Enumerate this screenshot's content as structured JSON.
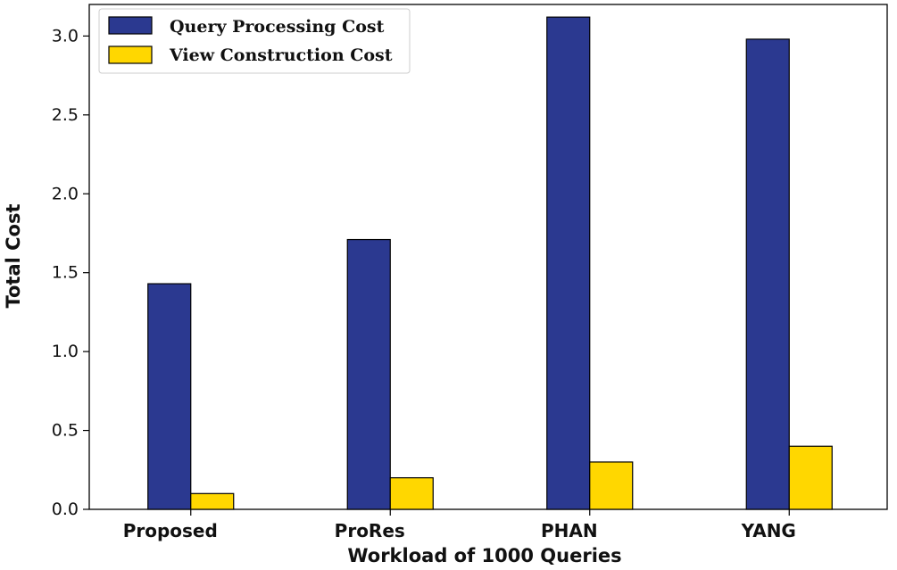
{
  "chart_data": {
    "type": "bar",
    "title": "",
    "xlabel": "Workload of 1000 Queries",
    "ylabel": "Total Cost",
    "categories": [
      "Proposed",
      "ProRes",
      "PHAN",
      "YANG"
    ],
    "series": [
      {
        "name": "Query Processing Cost",
        "values": [
          1.43,
          1.71,
          3.12,
          2.98
        ],
        "color": "#2b3990"
      },
      {
        "name": "View Construction Cost",
        "values": [
          0.1,
          0.2,
          0.3,
          0.4
        ],
        "color": "#ffd700"
      }
    ],
    "ylim": [
      0,
      3.2
    ],
    "yticks": [
      0.0,
      0.5,
      1.0,
      1.5,
      2.0,
      2.5,
      3.0
    ],
    "ytick_labels": [
      "0.0",
      "0.5",
      "1.0",
      "1.5",
      "2.0",
      "2.5",
      "3.0"
    ],
    "grid": false,
    "legend_position": "top-left"
  }
}
